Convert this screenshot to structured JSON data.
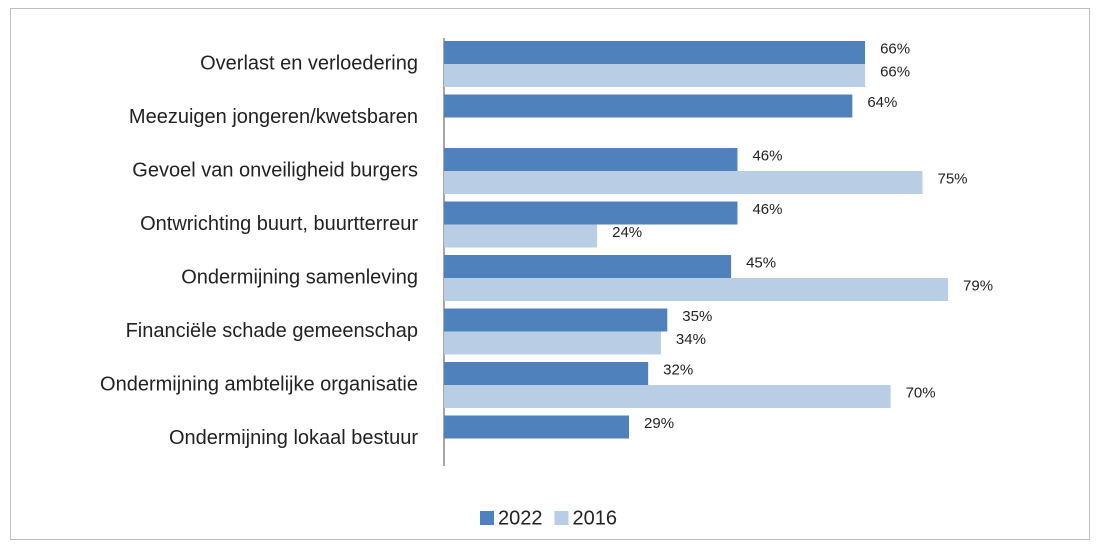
{
  "chart_data": {
    "type": "hbar",
    "categories": [
      "Overlast en verloedering",
      "Meezuigen jongeren/kwetsbaren",
      "Gevoel van onveiligheid burgers",
      "Ontwrichting buurt, buurtterreur",
      "Ondermijning samenleving",
      "Financiële schade gemeenschap",
      "Ondermijning ambtelijke organisatie",
      "Ondermijning lokaal bestuur"
    ],
    "series": [
      {
        "name": "2022",
        "color": "#4f81bd",
        "values": [
          66,
          64,
          46,
          46,
          45,
          35,
          32,
          29
        ],
        "value_labels": [
          "66%",
          "64%",
          "46%",
          "46%",
          "45%",
          "35%",
          "32%",
          "29%"
        ]
      },
      {
        "name": "2016",
        "color": "#b9cde5",
        "values": [
          66,
          null,
          75,
          24,
          79,
          34,
          70,
          null
        ],
        "value_labels": [
          "66%",
          null,
          "75%",
          "24%",
          "79%",
          "34%",
          "70%",
          null
        ]
      }
    ],
    "xlim": [
      0,
      100
    ],
    "legend": "bottom"
  }
}
